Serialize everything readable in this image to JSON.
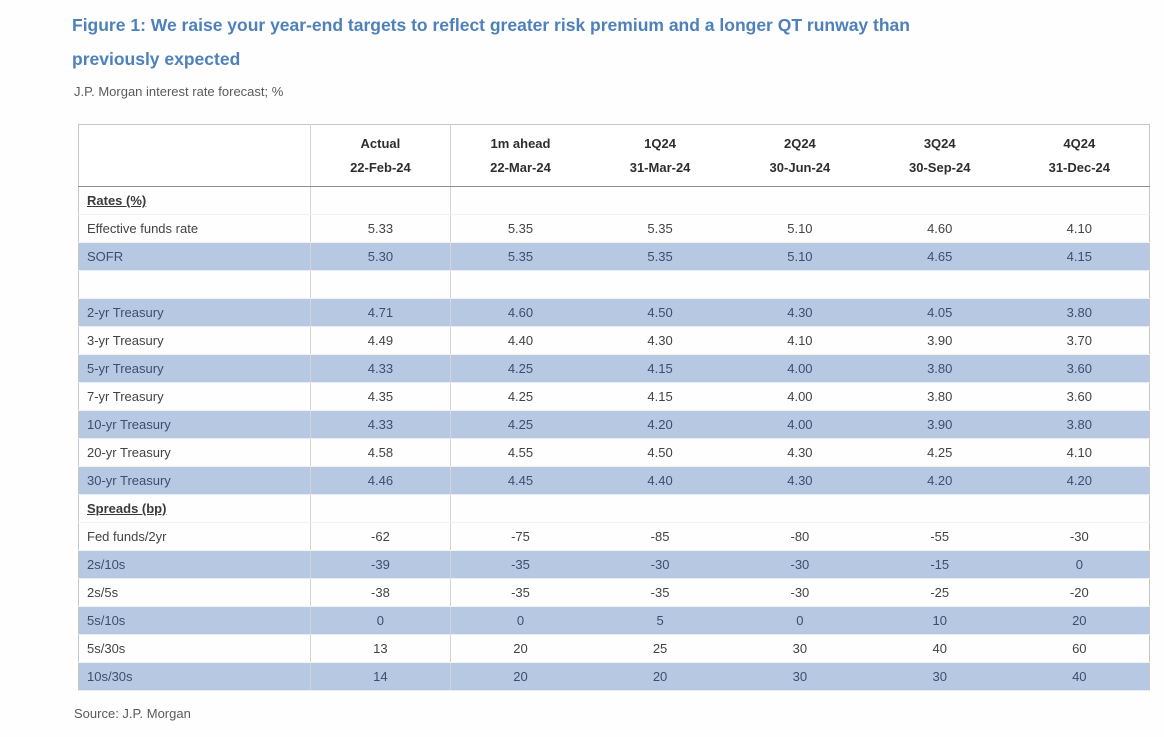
{
  "page": {
    "title_lines": [
      "Figure 1: We raise your year-end targets to reflect greater risk premium and a longer QT runway than",
      "previously expected"
    ],
    "subtitle": "J.P. Morgan interest rate forecast; %",
    "source": "Source: J.P. Morgan"
  },
  "colors": {
    "title_blue": "#4e81bb",
    "highlight_row_blue": "#b7c9e2",
    "body_text": "#434343",
    "muted_text": "#5a5a5a"
  },
  "chart_data": {
    "type": "table",
    "title": "J.P. Morgan interest rate forecast; %",
    "columns": [
      {
        "label": "",
        "date": ""
      },
      {
        "label": "Actual",
        "date": "22-Feb-24"
      },
      {
        "label": "1m ahead",
        "date": "22-Mar-24"
      },
      {
        "label": "1Q24",
        "date": "31-Mar-24"
      },
      {
        "label": "2Q24",
        "date": "30-Jun-24"
      },
      {
        "label": "3Q24",
        "date": "30-Sep-24"
      },
      {
        "label": "4Q24",
        "date": "31-Dec-24"
      }
    ],
    "rows": [
      {
        "label": "Rates (%)",
        "type": "section",
        "values": [
          "",
          "",
          "",
          "",
          "",
          ""
        ]
      },
      {
        "label": "Effective funds rate",
        "type": "plain",
        "values": [
          "5.33",
          "5.35",
          "5.35",
          "5.10",
          "4.60",
          "4.10"
        ]
      },
      {
        "label": "SOFR",
        "type": "highlight",
        "values": [
          "5.30",
          "5.35",
          "5.35",
          "5.10",
          "4.65",
          "4.15"
        ]
      },
      {
        "label": "",
        "type": "spacer",
        "values": [
          "",
          "",
          "",
          "",
          "",
          ""
        ]
      },
      {
        "label": "2-yr Treasury",
        "type": "highlight",
        "values": [
          "4.71",
          "4.60",
          "4.50",
          "4.30",
          "4.05",
          "3.80"
        ]
      },
      {
        "label": "3-yr Treasury",
        "type": "plain",
        "values": [
          "4.49",
          "4.40",
          "4.30",
          "4.10",
          "3.90",
          "3.70"
        ]
      },
      {
        "label": "5-yr Treasury",
        "type": "highlight",
        "values": [
          "4.33",
          "4.25",
          "4.15",
          "4.00",
          "3.80",
          "3.60"
        ]
      },
      {
        "label": "7-yr Treasury",
        "type": "plain",
        "values": [
          "4.35",
          "4.25",
          "4.15",
          "4.00",
          "3.80",
          "3.60"
        ]
      },
      {
        "label": "10-yr Treasury",
        "type": "highlight",
        "values": [
          "4.33",
          "4.25",
          "4.20",
          "4.00",
          "3.90",
          "3.80"
        ]
      },
      {
        "label": "20-yr Treasury",
        "type": "plain",
        "values": [
          "4.58",
          "4.55",
          "4.50",
          "4.30",
          "4.25",
          "4.10"
        ]
      },
      {
        "label": "30-yr Treasury",
        "type": "highlight",
        "values": [
          "4.46",
          "4.45",
          "4.40",
          "4.30",
          "4.20",
          "4.20"
        ]
      },
      {
        "label": "Spreads (bp)",
        "type": "section",
        "values": [
          "",
          "",
          "",
          "",
          "",
          ""
        ]
      },
      {
        "label": "Fed funds/2yr",
        "type": "plain",
        "values": [
          "-62",
          "-75",
          "-85",
          "-80",
          "-55",
          "-30"
        ]
      },
      {
        "label": "2s/10s",
        "type": "highlight",
        "values": [
          "-39",
          "-35",
          "-30",
          "-30",
          "-15",
          "0"
        ]
      },
      {
        "label": "2s/5s",
        "type": "plain",
        "values": [
          "-38",
          "-35",
          "-35",
          "-30",
          "-25",
          "-20"
        ]
      },
      {
        "label": "5s/10s",
        "type": "highlight",
        "values": [
          "0",
          "0",
          "5",
          "0",
          "10",
          "20"
        ]
      },
      {
        "label": "5s/30s",
        "type": "plain",
        "values": [
          "13",
          "20",
          "25",
          "30",
          "40",
          "60"
        ]
      },
      {
        "label": "10s/30s",
        "type": "highlight",
        "values": [
          "14",
          "20",
          "20",
          "30",
          "30",
          "40"
        ]
      }
    ]
  }
}
